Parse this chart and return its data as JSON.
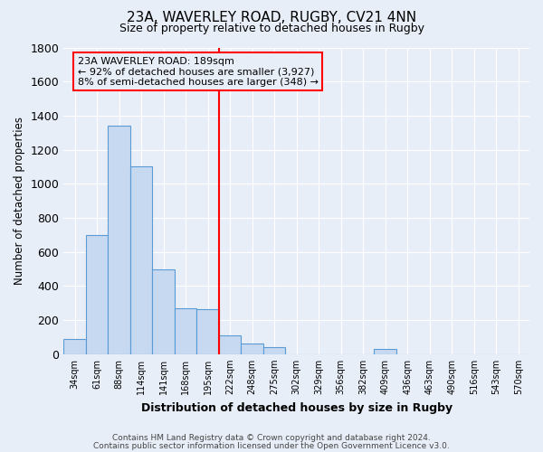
{
  "title1": "23A, WAVERLEY ROAD, RUGBY, CV21 4NN",
  "title2": "Size of property relative to detached houses in Rugby",
  "xlabel": "Distribution of detached houses by size in Rugby",
  "ylabel": "Number of detached properties",
  "footer1": "Contains HM Land Registry data © Crown copyright and database right 2024.",
  "footer2": "Contains public sector information licensed under the Open Government Licence v3.0.",
  "bar_labels": [
    "34sqm",
    "61sqm",
    "88sqm",
    "114sqm",
    "141sqm",
    "168sqm",
    "195sqm",
    "222sqm",
    "248sqm",
    "275sqm",
    "302sqm",
    "329sqm",
    "356sqm",
    "382sqm",
    "409sqm",
    "436sqm",
    "463sqm",
    "490sqm",
    "516sqm",
    "543sqm",
    "570sqm"
  ],
  "bar_values": [
    90,
    700,
    1340,
    1100,
    500,
    270,
    265,
    110,
    65,
    40,
    0,
    0,
    0,
    0,
    30,
    0,
    0,
    0,
    0,
    0,
    0
  ],
  "bar_color": "#c6d9f1",
  "bar_edge_color": "#5b9bd5",
  "vline_x_index": 6,
  "vline_color": "red",
  "annotation_line1": "23A WAVERLEY ROAD: 189sqm",
  "annotation_line2": "← 92% of detached houses are smaller (3,927)",
  "annotation_line3": "8% of semi-detached houses are larger (348) →",
  "bg_color": "#e8eef8",
  "grid_color": "#d0d8e8",
  "ylim": [
    0,
    1800
  ],
  "yticks": [
    0,
    200,
    400,
    600,
    800,
    1000,
    1200,
    1400,
    1600,
    1800
  ]
}
